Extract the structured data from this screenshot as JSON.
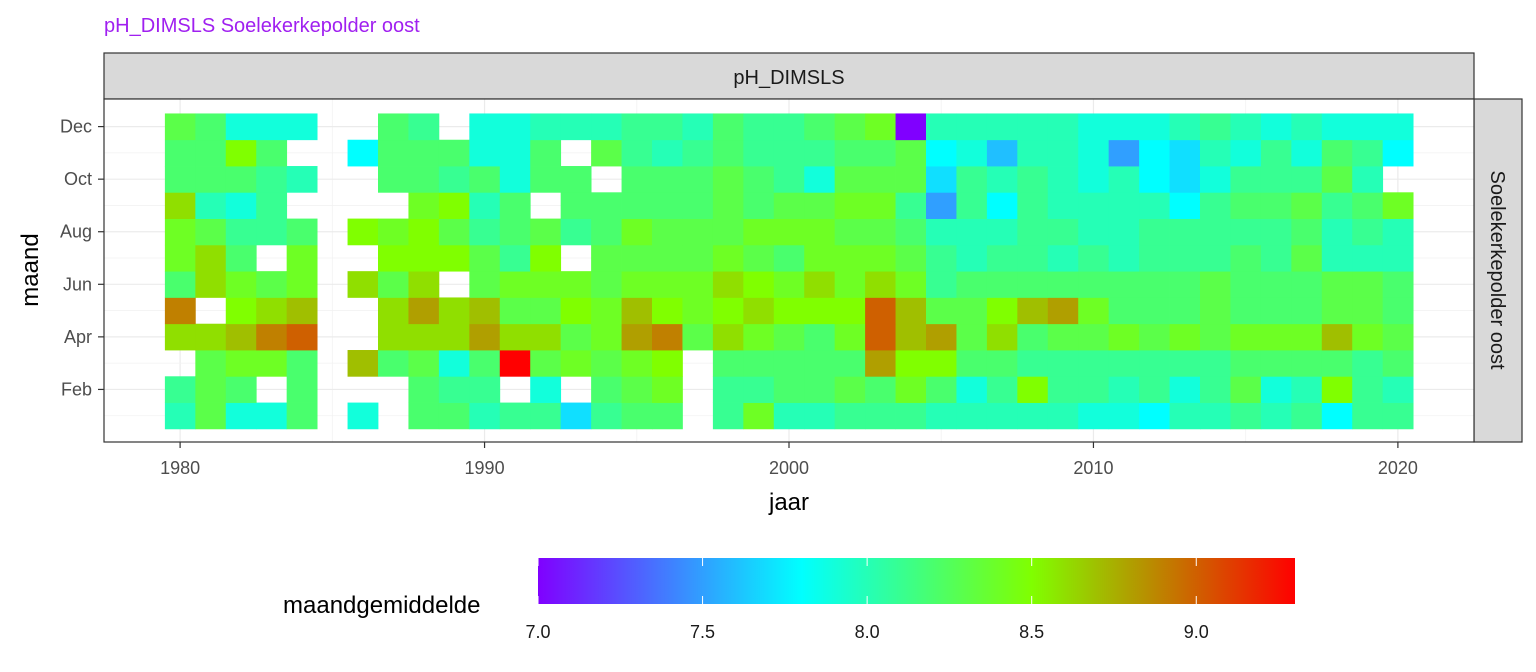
{
  "chart_data": {
    "type": "heatmap",
    "title": "pH_DIMSLS Soelekerkepolder oost",
    "title_color": "#a020f0",
    "facet_col_label": "pH_DIMSLS",
    "facet_row_label": "Soelekerkepolder oost",
    "xlabel": "jaar",
    "ylabel": "maand",
    "xlim": [
      1977.5,
      2022.5
    ],
    "x_ticks": [
      1980,
      1990,
      2000,
      2010,
      2020
    ],
    "x_tick_labels": [
      "1980",
      "1990",
      "2000",
      "2010",
      "2020"
    ],
    "y_ticks": [
      2,
      4,
      6,
      8,
      10,
      12
    ],
    "y_tick_labels": [
      "Feb",
      "Apr",
      "Jun",
      "Aug",
      "Oct",
      "Dec"
    ],
    "years": [
      1980,
      1981,
      1982,
      1983,
      1984,
      1985,
      1986,
      1987,
      1988,
      1989,
      1990,
      1991,
      1992,
      1993,
      1994,
      1995,
      1996,
      1997,
      1998,
      1999,
      2000,
      2001,
      2002,
      2003,
      2004,
      2005,
      2006,
      2007,
      2008,
      2009,
      2010,
      2011,
      2012,
      2013,
      2014,
      2015,
      2016,
      2017,
      2018,
      2019,
      2020
    ],
    "months": [
      1,
      2,
      3,
      4,
      5,
      6,
      7,
      8,
      9,
      10,
      11,
      12
    ],
    "values": [
      [
        8.0,
        8.3,
        7.9,
        7.9,
        8.2,
        null,
        7.9,
        null,
        8.2,
        8.2,
        8.0,
        8.1,
        8.1,
        7.7,
        8.1,
        8.2,
        8.2,
        null,
        8.1,
        8.4,
        8.0,
        8.0,
        8.1,
        8.1,
        8.1,
        8.0,
        8.0,
        8.0,
        8.0,
        8.0,
        7.9,
        7.9,
        7.8,
        8.0,
        8.0,
        8.1,
        8.0,
        8.1,
        7.8,
        8.1,
        8.1
      ],
      [
        8.1,
        8.3,
        8.2,
        null,
        8.2,
        null,
        null,
        null,
        8.2,
        8.1,
        8.1,
        null,
        7.9,
        null,
        8.2,
        8.3,
        8.4,
        null,
        8.1,
        8.1,
        8.2,
        8.2,
        8.3,
        8.2,
        8.4,
        8.2,
        7.9,
        8.1,
        8.5,
        8.1,
        8.1,
        8.0,
        8.1,
        7.9,
        8.1,
        8.3,
        7.9,
        8.0,
        8.5,
        8.1,
        8.0
      ],
      [
        null,
        8.3,
        8.4,
        8.4,
        8.2,
        null,
        8.7,
        8.2,
        8.3,
        7.9,
        8.2,
        9.3,
        8.3,
        8.4,
        8.3,
        8.4,
        8.5,
        null,
        8.2,
        8.2,
        8.2,
        8.2,
        8.2,
        8.8,
        8.5,
        8.5,
        8.2,
        8.2,
        8.1,
        8.1,
        8.1,
        8.1,
        8.1,
        8.1,
        8.1,
        8.2,
        8.2,
        8.2,
        8.2,
        8.1,
        8.2
      ],
      [
        8.6,
        8.6,
        8.7,
        8.9,
        9.0,
        null,
        null,
        8.6,
        8.6,
        8.6,
        8.8,
        8.6,
        8.6,
        8.3,
        8.4,
        8.8,
        8.9,
        8.3,
        8.6,
        8.4,
        8.3,
        8.2,
        8.4,
        9.0,
        8.7,
        8.8,
        8.3,
        8.6,
        8.2,
        8.3,
        8.3,
        8.4,
        8.3,
        8.4,
        8.3,
        8.4,
        8.4,
        8.4,
        8.7,
        8.4,
        8.3
      ],
      [
        8.9,
        null,
        8.5,
        8.6,
        8.7,
        null,
        null,
        8.6,
        8.8,
        8.6,
        8.7,
        8.3,
        8.3,
        8.5,
        8.4,
        8.7,
        8.5,
        8.4,
        8.5,
        8.6,
        8.5,
        8.5,
        8.5,
        9.0,
        8.7,
        8.3,
        8.3,
        8.5,
        8.7,
        8.8,
        8.4,
        8.2,
        8.2,
        8.2,
        8.3,
        8.2,
        8.2,
        8.2,
        8.3,
        8.3,
        8.2
      ],
      [
        8.2,
        8.6,
        8.4,
        8.3,
        8.4,
        null,
        8.6,
        8.3,
        8.6,
        null,
        8.3,
        8.4,
        8.4,
        8.4,
        8.3,
        8.4,
        8.4,
        8.4,
        8.6,
        8.5,
        8.4,
        8.6,
        8.4,
        8.6,
        8.4,
        8.1,
        8.2,
        8.2,
        8.2,
        8.2,
        8.2,
        8.2,
        8.2,
        8.2,
        8.3,
        8.2,
        8.2,
        8.2,
        8.3,
        8.3,
        8.2
      ],
      [
        8.4,
        8.6,
        8.2,
        null,
        8.4,
        null,
        null,
        8.5,
        8.5,
        8.5,
        8.3,
        8.1,
        8.5,
        null,
        8.3,
        8.3,
        8.3,
        8.3,
        8.4,
        8.3,
        8.2,
        8.4,
        8.4,
        8.4,
        8.3,
        8.1,
        8.0,
        8.1,
        8.1,
        8.0,
        8.1,
        8.0,
        8.1,
        8.1,
        8.1,
        8.2,
        8.1,
        8.3,
        8.0,
        8.0,
        8.0
      ],
      [
        8.4,
        8.3,
        8.1,
        8.1,
        8.2,
        null,
        8.5,
        8.4,
        8.5,
        8.3,
        8.1,
        8.2,
        8.3,
        8.1,
        8.2,
        8.4,
        8.3,
        8.3,
        8.3,
        8.4,
        8.4,
        8.4,
        8.3,
        8.3,
        8.2,
        8.0,
        8.0,
        8.0,
        8.1,
        8.1,
        8.0,
        8.0,
        8.1,
        8.1,
        8.1,
        8.1,
        8.1,
        8.2,
        8.0,
        8.1,
        8.0
      ],
      [
        8.6,
        8.0,
        7.9,
        8.1,
        null,
        null,
        null,
        null,
        8.4,
        8.5,
        8.0,
        8.2,
        null,
        8.2,
        8.2,
        8.2,
        8.2,
        8.2,
        8.3,
        8.2,
        8.3,
        8.3,
        8.4,
        8.4,
        8.1,
        7.5,
        8.1,
        7.8,
        8.1,
        8.0,
        8.0,
        8.0,
        8.0,
        7.8,
        8.1,
        8.2,
        8.2,
        8.3,
        8.1,
        8.2,
        8.4
      ],
      [
        8.2,
        8.2,
        8.2,
        8.1,
        8.0,
        null,
        null,
        8.2,
        8.2,
        8.1,
        8.2,
        7.9,
        8.2,
        8.2,
        null,
        8.2,
        8.2,
        8.2,
        8.3,
        8.2,
        8.1,
        7.9,
        8.3,
        8.3,
        8.3,
        7.7,
        8.1,
        8.0,
        8.1,
        8.0,
        7.9,
        8.0,
        7.8,
        7.7,
        7.9,
        8.1,
        8.1,
        8.1,
        8.3,
        8.0,
        null
      ],
      [
        8.2,
        8.2,
        8.5,
        8.2,
        null,
        null,
        7.8,
        8.2,
        8.2,
        8.2,
        7.9,
        7.9,
        8.2,
        null,
        8.3,
        8.1,
        8.0,
        8.1,
        8.2,
        8.1,
        8.1,
        8.1,
        8.2,
        8.2,
        8.3,
        7.8,
        7.9,
        7.6,
        8.0,
        8.0,
        7.9,
        7.5,
        7.8,
        7.7,
        8.0,
        7.9,
        8.1,
        7.9,
        8.2,
        8.1,
        7.8
      ],
      [
        8.3,
        8.2,
        7.9,
        7.9,
        7.9,
        null,
        null,
        8.2,
        8.1,
        null,
        7.9,
        7.9,
        8.0,
        8.0,
        8.0,
        8.1,
        8.1,
        8.0,
        8.2,
        8.1,
        8.1,
        8.2,
        8.3,
        8.4,
        7.0,
        8.0,
        8.0,
        8.0,
        8.0,
        8.0,
        7.9,
        7.9,
        7.9,
        8.0,
        8.1,
        8.0,
        7.9,
        8.0,
        7.9,
        7.9,
        7.9
      ]
    ],
    "grid": true,
    "legend": {
      "title": "maandgemiddelde",
      "position": "bottom",
      "range": [
        7.0,
        9.3
      ],
      "ticks": [
        7.0,
        7.5,
        8.0,
        8.5,
        9.0
      ],
      "tick_labels": [
        "7.0",
        "7.5",
        "8.0",
        "8.5",
        "9.0"
      ]
    },
    "colorscale": [
      {
        "value": 7.0,
        "color": "#8000ff"
      },
      {
        "value": 7.8,
        "color": "#00ffff"
      },
      {
        "value": 8.5,
        "color": "#80ff00"
      },
      {
        "value": 9.3,
        "color": "#ff0000"
      }
    ]
  }
}
